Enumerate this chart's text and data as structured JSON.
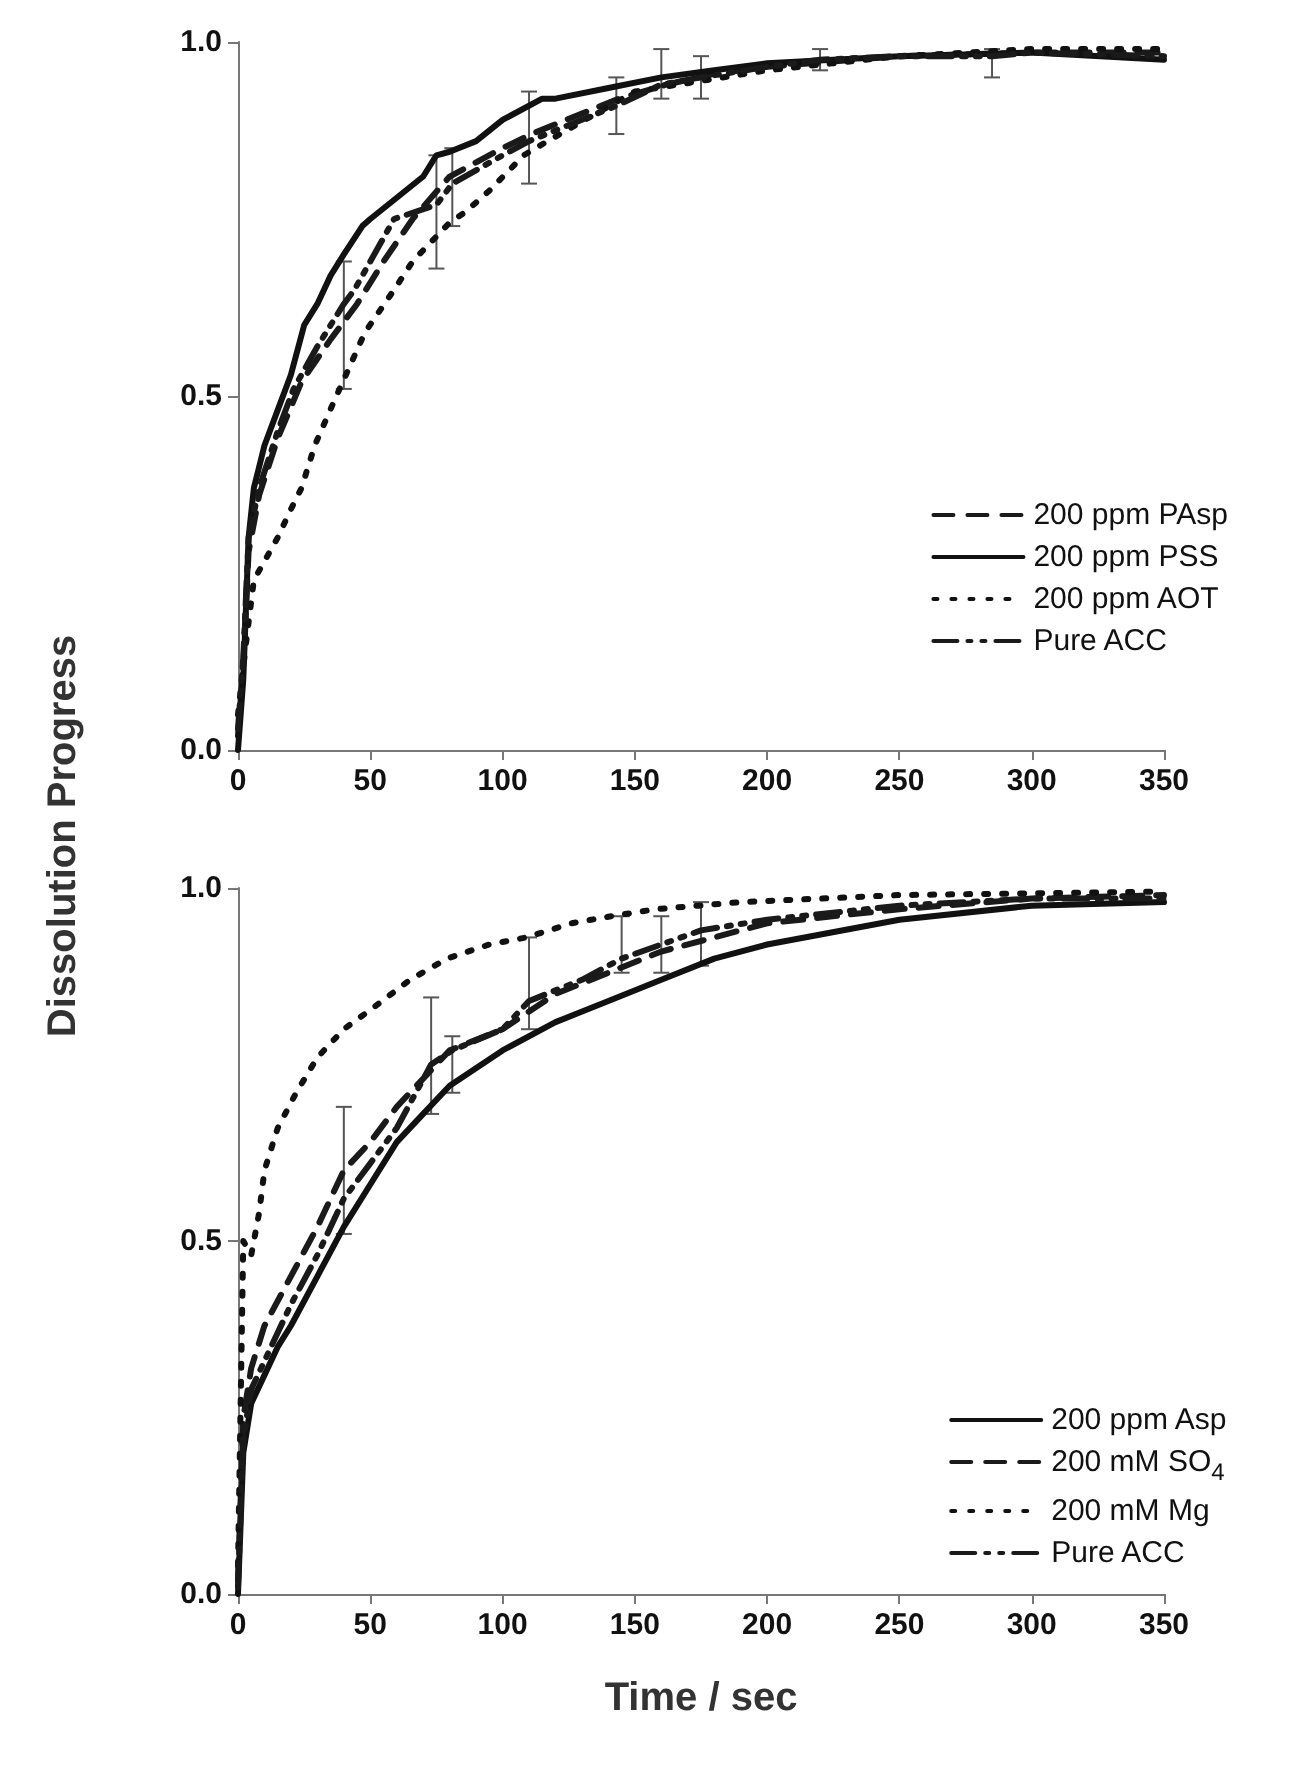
{
  "chart_data": [
    {
      "type": "line",
      "ylabel": "Dissolution Progress",
      "xlim": [
        0,
        350
      ],
      "ylim": [
        0,
        1
      ],
      "xticks": [
        0,
        50,
        100,
        150,
        200,
        250,
        300,
        350
      ],
      "yticks": [
        {
          "value": 0,
          "label": "0.0"
        },
        {
          "value": 0.5,
          "label": "0.5"
        },
        {
          "value": 1,
          "label": "1.0"
        }
      ],
      "legend": "bottom right",
      "grid": false,
      "marker": "none",
      "series": [
        {
          "name": "200 ppm PAsp",
          "color": "#1a1a1a",
          "line_style": "dashed",
          "x": [
            0,
            2,
            4,
            8,
            15,
            24,
            35,
            45,
            55,
            66,
            80,
            90,
            100,
            111,
            124,
            144,
            162,
            180,
            200,
            250,
            300,
            350
          ],
          "values": [
            0.02,
            0.12,
            0.28,
            0.36,
            0.44,
            0.52,
            0.58,
            0.63,
            0.69,
            0.75,
            0.81,
            0.83,
            0.85,
            0.87,
            0.89,
            0.92,
            0.94,
            0.955,
            0.965,
            0.98,
            0.985,
            0.985
          ]
        },
        {
          "name": "200 ppm PSS",
          "color": "#111111",
          "line_style": "solid",
          "x": [
            0,
            2,
            4,
            6,
            10,
            15,
            20,
            25,
            30,
            35,
            40,
            47,
            50,
            60,
            70,
            75,
            80,
            90,
            100,
            115,
            120,
            140,
            160,
            180,
            200,
            250,
            300,
            350
          ],
          "values": [
            0,
            0.1,
            0.3,
            0.37,
            0.43,
            0.48,
            0.53,
            0.6,
            0.63,
            0.67,
            0.7,
            0.74,
            0.75,
            0.78,
            0.81,
            0.84,
            0.845,
            0.86,
            0.89,
            0.92,
            0.92,
            0.935,
            0.95,
            0.96,
            0.97,
            0.98,
            0.985,
            0.975
          ]
        },
        {
          "name": "200 ppm AOT",
          "color": "#111111",
          "line_style": "dotted",
          "x": [
            0,
            3,
            6,
            15,
            20,
            24,
            29,
            36,
            48,
            59,
            66,
            80,
            86,
            95,
            108,
            117,
            150,
            200,
            250,
            300,
            350
          ],
          "values": [
            0.05,
            0.15,
            0.24,
            0.3,
            0.34,
            0.37,
            0.43,
            0.49,
            0.59,
            0.65,
            0.69,
            0.745,
            0.76,
            0.79,
            0.84,
            0.86,
            0.93,
            0.96,
            0.98,
            0.99,
            0.99
          ]
        },
        {
          "name": "Pure ACC",
          "color": "#1a1a1a",
          "line_style": "dashdot",
          "x": [
            0,
            2,
            4,
            8,
            15,
            21,
            30,
            40,
            44,
            59,
            75,
            81,
            100,
            110,
            143,
            160,
            175,
            200,
            220,
            250,
            285,
            300,
            350
          ],
          "values": [
            0.03,
            0.13,
            0.3,
            0.37,
            0.45,
            0.51,
            0.57,
            0.63,
            0.65,
            0.75,
            0.77,
            0.8,
            0.84,
            0.86,
            0.91,
            0.94,
            0.95,
            0.965,
            0.975,
            0.98,
            0.98,
            0.985,
            0.98
          ],
          "errors": [
            null,
            null,
            null,
            null,
            null,
            null,
            null,
            [
              0.51,
              0.69
            ],
            null,
            null,
            [
              0.68,
              0.84
            ],
            [
              0.74,
              0.85
            ],
            null,
            [
              0.8,
              0.93
            ],
            [
              0.87,
              0.95
            ],
            [
              0.92,
              0.99
            ],
            [
              0.92,
              0.98
            ],
            null,
            [
              0.96,
              0.99
            ],
            null,
            [
              0.95,
              0.99
            ],
            null,
            null
          ]
        }
      ]
    },
    {
      "type": "line",
      "xlabel": "Time / sec",
      "xlim": [
        0,
        350
      ],
      "ylim": [
        0,
        1
      ],
      "xticks": [
        0,
        50,
        100,
        150,
        200,
        250,
        300,
        350
      ],
      "yticks": [
        {
          "value": 0,
          "label": "0.0"
        },
        {
          "value": 0.5,
          "label": "0.5"
        },
        {
          "value": 1,
          "label": "1.0"
        }
      ],
      "legend": "bottom right",
      "grid": false,
      "marker": "none",
      "series": [
        {
          "name": "200 ppm Asp",
          "color": "#111111",
          "line_style": "solid",
          "x": [
            0,
            2,
            5,
            10,
            15,
            20,
            30,
            40,
            50,
            60,
            70,
            80,
            100,
            120,
            140,
            160,
            180,
            200,
            250,
            300,
            350
          ],
          "values": [
            0,
            0.2,
            0.27,
            0.31,
            0.35,
            0.38,
            0.45,
            0.52,
            0.58,
            0.64,
            0.68,
            0.72,
            0.77,
            0.81,
            0.84,
            0.87,
            0.9,
            0.92,
            0.955,
            0.975,
            0.98
          ]
        },
        {
          "name": "200 mM SO$_{4}$",
          "color": "#1a1a1a",
          "line_style": "dashed",
          "x": [
            0,
            2,
            5,
            10,
            20,
            30,
            40,
            50,
            60,
            70,
            80,
            100,
            120,
            140,
            160,
            180,
            200,
            250,
            300,
            350
          ],
          "values": [
            0.02,
            0.25,
            0.32,
            0.38,
            0.45,
            0.52,
            0.6,
            0.64,
            0.69,
            0.73,
            0.77,
            0.8,
            0.85,
            0.88,
            0.91,
            0.93,
            0.95,
            0.97,
            0.985,
            0.99
          ]
        },
        {
          "name": "200 mM Mg",
          "color": "#111111",
          "line_style": "dotted",
          "x": [
            0,
            2,
            5,
            8,
            10,
            15,
            22,
            30,
            40,
            51,
            65,
            79,
            95,
            109,
            126,
            141,
            158,
            174,
            190,
            250,
            350
          ],
          "values": [
            0.04,
            0.5,
            0.48,
            0.54,
            0.6,
            0.66,
            0.71,
            0.76,
            0.8,
            0.83,
            0.87,
            0.9,
            0.92,
            0.93,
            0.95,
            0.96,
            0.97,
            0.975,
            0.98,
            0.99,
            0.995
          ]
        },
        {
          "name": "Pure ACC",
          "color": "#1a1a1a",
          "line_style": "dashdot",
          "x": [
            0,
            2,
            5,
            10,
            20,
            30,
            40,
            50,
            60,
            73,
            81,
            100,
            110,
            130,
            145,
            160,
            175,
            200,
            250,
            300,
            350
          ],
          "values": [
            0.01,
            0.22,
            0.29,
            0.33,
            0.41,
            0.48,
            0.56,
            0.61,
            0.66,
            0.75,
            0.77,
            0.8,
            0.84,
            0.87,
            0.9,
            0.92,
            0.94,
            0.955,
            0.975,
            0.985,
            0.985
          ],
          "errors": [
            null,
            null,
            null,
            null,
            null,
            null,
            [
              0.51,
              0.69
            ],
            null,
            null,
            [
              0.68,
              0.845
            ],
            [
              0.71,
              0.79
            ],
            null,
            [
              0.8,
              0.93
            ],
            null,
            [
              0.88,
              0.96
            ],
            [
              0.88,
              0.96
            ],
            [
              0.89,
              0.98
            ],
            null,
            null,
            null,
            null
          ]
        }
      ]
    }
  ]
}
